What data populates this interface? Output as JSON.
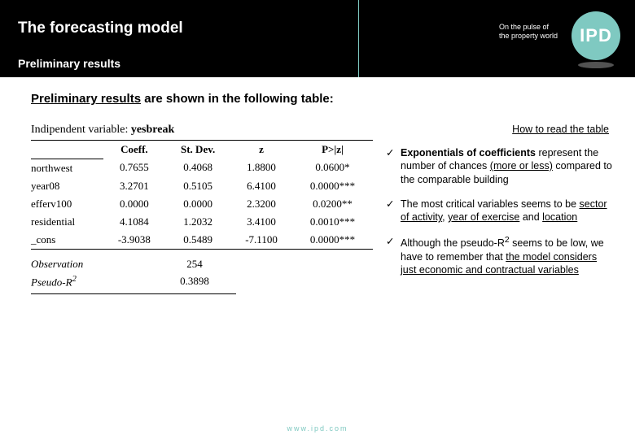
{
  "header": {
    "title": "The forecasting model",
    "tagline1": "On the pulse of",
    "tagline2": "the property world",
    "logo": "IPD",
    "subheader": "Preliminary results"
  },
  "intro": {
    "underlined": "Preliminary results",
    "rest": " are shown in the following table:"
  },
  "table": {
    "caption_label": "Indipendent variable: ",
    "depvar": "yesbreak",
    "headers": [
      "",
      "Coeff.",
      "St. Dev.",
      "z",
      "P>|z|"
    ],
    "rows": [
      [
        "northwest",
        "0.7655",
        "0.4068",
        "1.8800",
        "0.0600*"
      ],
      [
        "year08",
        "3.2701",
        "0.5105",
        "6.4100",
        "0.0000***"
      ],
      [
        "efferv100",
        "0.0000",
        "0.0000",
        "2.3200",
        "0.0200**"
      ],
      [
        "residential",
        "4.1084",
        "1.2032",
        "3.4100",
        "0.0010***"
      ],
      [
        "_cons",
        "-3.9038",
        "0.5489",
        "-7.1100",
        "0.0000***"
      ]
    ],
    "footer": [
      [
        "Observation",
        "254"
      ],
      [
        "Pseudo-R",
        "0.3898"
      ]
    ]
  },
  "notes": {
    "how_to": "How to read the table",
    "items": [
      {
        "html": "<b>Exponentials of coefficients</b> represent the number of chances <span class='u'>(more or less)</span> compared to the comparable building"
      },
      {
        "html": "The most critical variables seems to be <span class='u'>sector of activity</span>, <span class='u'>year of exercise</span> and <span class='u'>location</span>"
      },
      {
        "html": "Although the pseudo-R<sup>2</sup> seems to be low, we have to remember that <span class='u'>the model considers just economic and contractual variables</span>"
      }
    ]
  },
  "footer_url": "www.ipd.com",
  "colors": {
    "brand": "#7fc9c1",
    "black": "#000000",
    "white": "#ffffff"
  }
}
